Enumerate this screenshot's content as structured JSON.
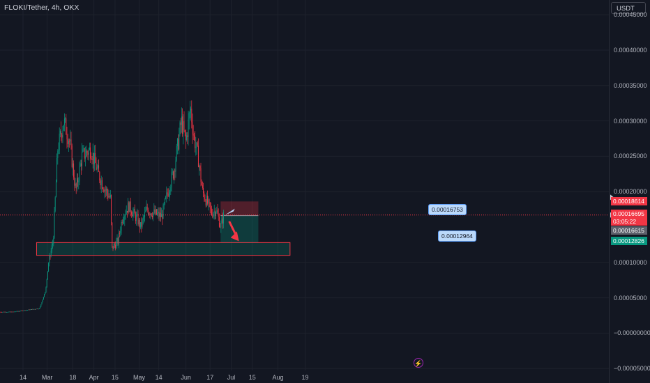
{
  "header": {
    "symbol_title": "FLOKI/Tether, 4h, OKX",
    "currency": "USDT"
  },
  "y_axis": {
    "ticks": [
      {
        "value": 0.00045,
        "label": "0.00045000"
      },
      {
        "value": 0.0004,
        "label": "0.00040000"
      },
      {
        "value": 0.00035,
        "label": "0.00035000"
      },
      {
        "value": 0.0003,
        "label": "0.00030000"
      },
      {
        "value": 0.00025,
        "label": "0.00025000"
      },
      {
        "value": 0.0002,
        "label": "0.00020000"
      },
      {
        "value": 0.0001,
        "label": "0.00010000"
      },
      {
        "value": 5e-05,
        "label": "0.00005000"
      },
      {
        "value": 0.0,
        "label": "−0.00000000"
      },
      {
        "value": -5e-05,
        "label": "−0.00005000"
      }
    ]
  },
  "x_axis": {
    "ticks": [
      "14",
      "Mar",
      "18",
      "Apr",
      "15",
      "May",
      "14",
      "Jun",
      "17",
      "Jul",
      "15",
      "Aug",
      "19"
    ]
  },
  "price_labels": {
    "stop_loss": {
      "text": "0.00018614",
      "color": "#f23645"
    },
    "current": {
      "text": "0.00016695",
      "color": "#f23645"
    },
    "countdown": {
      "text": "03:05:22",
      "color": "#f23645"
    },
    "entry": {
      "text": "0.00016615",
      "color": "#5d606b"
    },
    "target": {
      "text": "0.00012826",
      "color": "#089981"
    }
  },
  "callouts": {
    "upper": "0.00016753",
    "lower": "0.00012964"
  },
  "colors": {
    "background": "#131722",
    "up": "#089981",
    "down": "#f23645",
    "grid": "#1e222d",
    "zone_fill": "rgba(8,153,129,0.22)",
    "zone_border": "#f23645"
  },
  "chart_data": {
    "type": "candlestick",
    "title": "FLOKI/Tether, 4h, OKX",
    "timeframe": "4h",
    "exchange": "OKX",
    "ylim": [
      -5e-05,
      0.0005
    ],
    "price_path": [
      {
        "date": "2024-02-07",
        "price": 3e-05
      },
      {
        "date": "2024-02-25",
        "price": 3.5e-05
      },
      {
        "date": "2024-02-29",
        "price": 6e-05
      },
      {
        "date": "2024-03-02",
        "price": 0.0001
      },
      {
        "date": "2024-03-05",
        "price": 0.00013
      },
      {
        "date": "2024-03-08",
        "price": 0.00026
      },
      {
        "date": "2024-03-12",
        "price": 0.0003
      },
      {
        "date": "2024-03-16",
        "price": 0.00027
      },
      {
        "date": "2024-03-20",
        "price": 0.0002
      },
      {
        "date": "2024-03-24",
        "price": 0.00025
      },
      {
        "date": "2024-03-30",
        "price": 0.00026
      },
      {
        "date": "2024-04-04",
        "price": 0.000225
      },
      {
        "date": "2024-04-08",
        "price": 0.000205
      },
      {
        "date": "2024-04-12",
        "price": 0.00019
      },
      {
        "date": "2024-04-13",
        "price": 0.00012
      },
      {
        "date": "2024-04-17",
        "price": 0.00013
      },
      {
        "date": "2024-04-20",
        "price": 0.000165
      },
      {
        "date": "2024-04-24",
        "price": 0.00018
      },
      {
        "date": "2024-04-30",
        "price": 0.00016
      },
      {
        "date": "2024-05-02",
        "price": 0.00015
      },
      {
        "date": "2024-05-06",
        "price": 0.000175
      },
      {
        "date": "2024-05-10",
        "price": 0.00017
      },
      {
        "date": "2024-05-16",
        "price": 0.000165
      },
      {
        "date": "2024-05-20",
        "price": 0.0002
      },
      {
        "date": "2024-05-24",
        "price": 0.00023
      },
      {
        "date": "2024-05-29",
        "price": 0.0003
      },
      {
        "date": "2024-06-01",
        "price": 0.00027
      },
      {
        "date": "2024-06-04",
        "price": 0.00032
      },
      {
        "date": "2024-06-06",
        "price": 0.00028
      },
      {
        "date": "2024-06-09",
        "price": 0.00025
      },
      {
        "date": "2024-06-12",
        "price": 0.0002
      },
      {
        "date": "2024-06-15",
        "price": 0.000185
      },
      {
        "date": "2024-06-18",
        "price": 0.00017
      },
      {
        "date": "2024-06-21",
        "price": 0.000175
      },
      {
        "date": "2024-06-24",
        "price": 0.00015
      },
      {
        "date": "2024-06-26",
        "price": 0.000167
      }
    ],
    "support_zone": {
      "from": 0.00011,
      "to": 0.000128,
      "start_date": "2024-02-23",
      "end_date": "2024-08-09"
    },
    "position": {
      "entry": 0.00016615,
      "stop_loss": 0.00018614,
      "target": 0.00012826,
      "start_date": "2024-06-24",
      "end_date": "2024-07-19"
    },
    "current_price": 0.00016695
  }
}
